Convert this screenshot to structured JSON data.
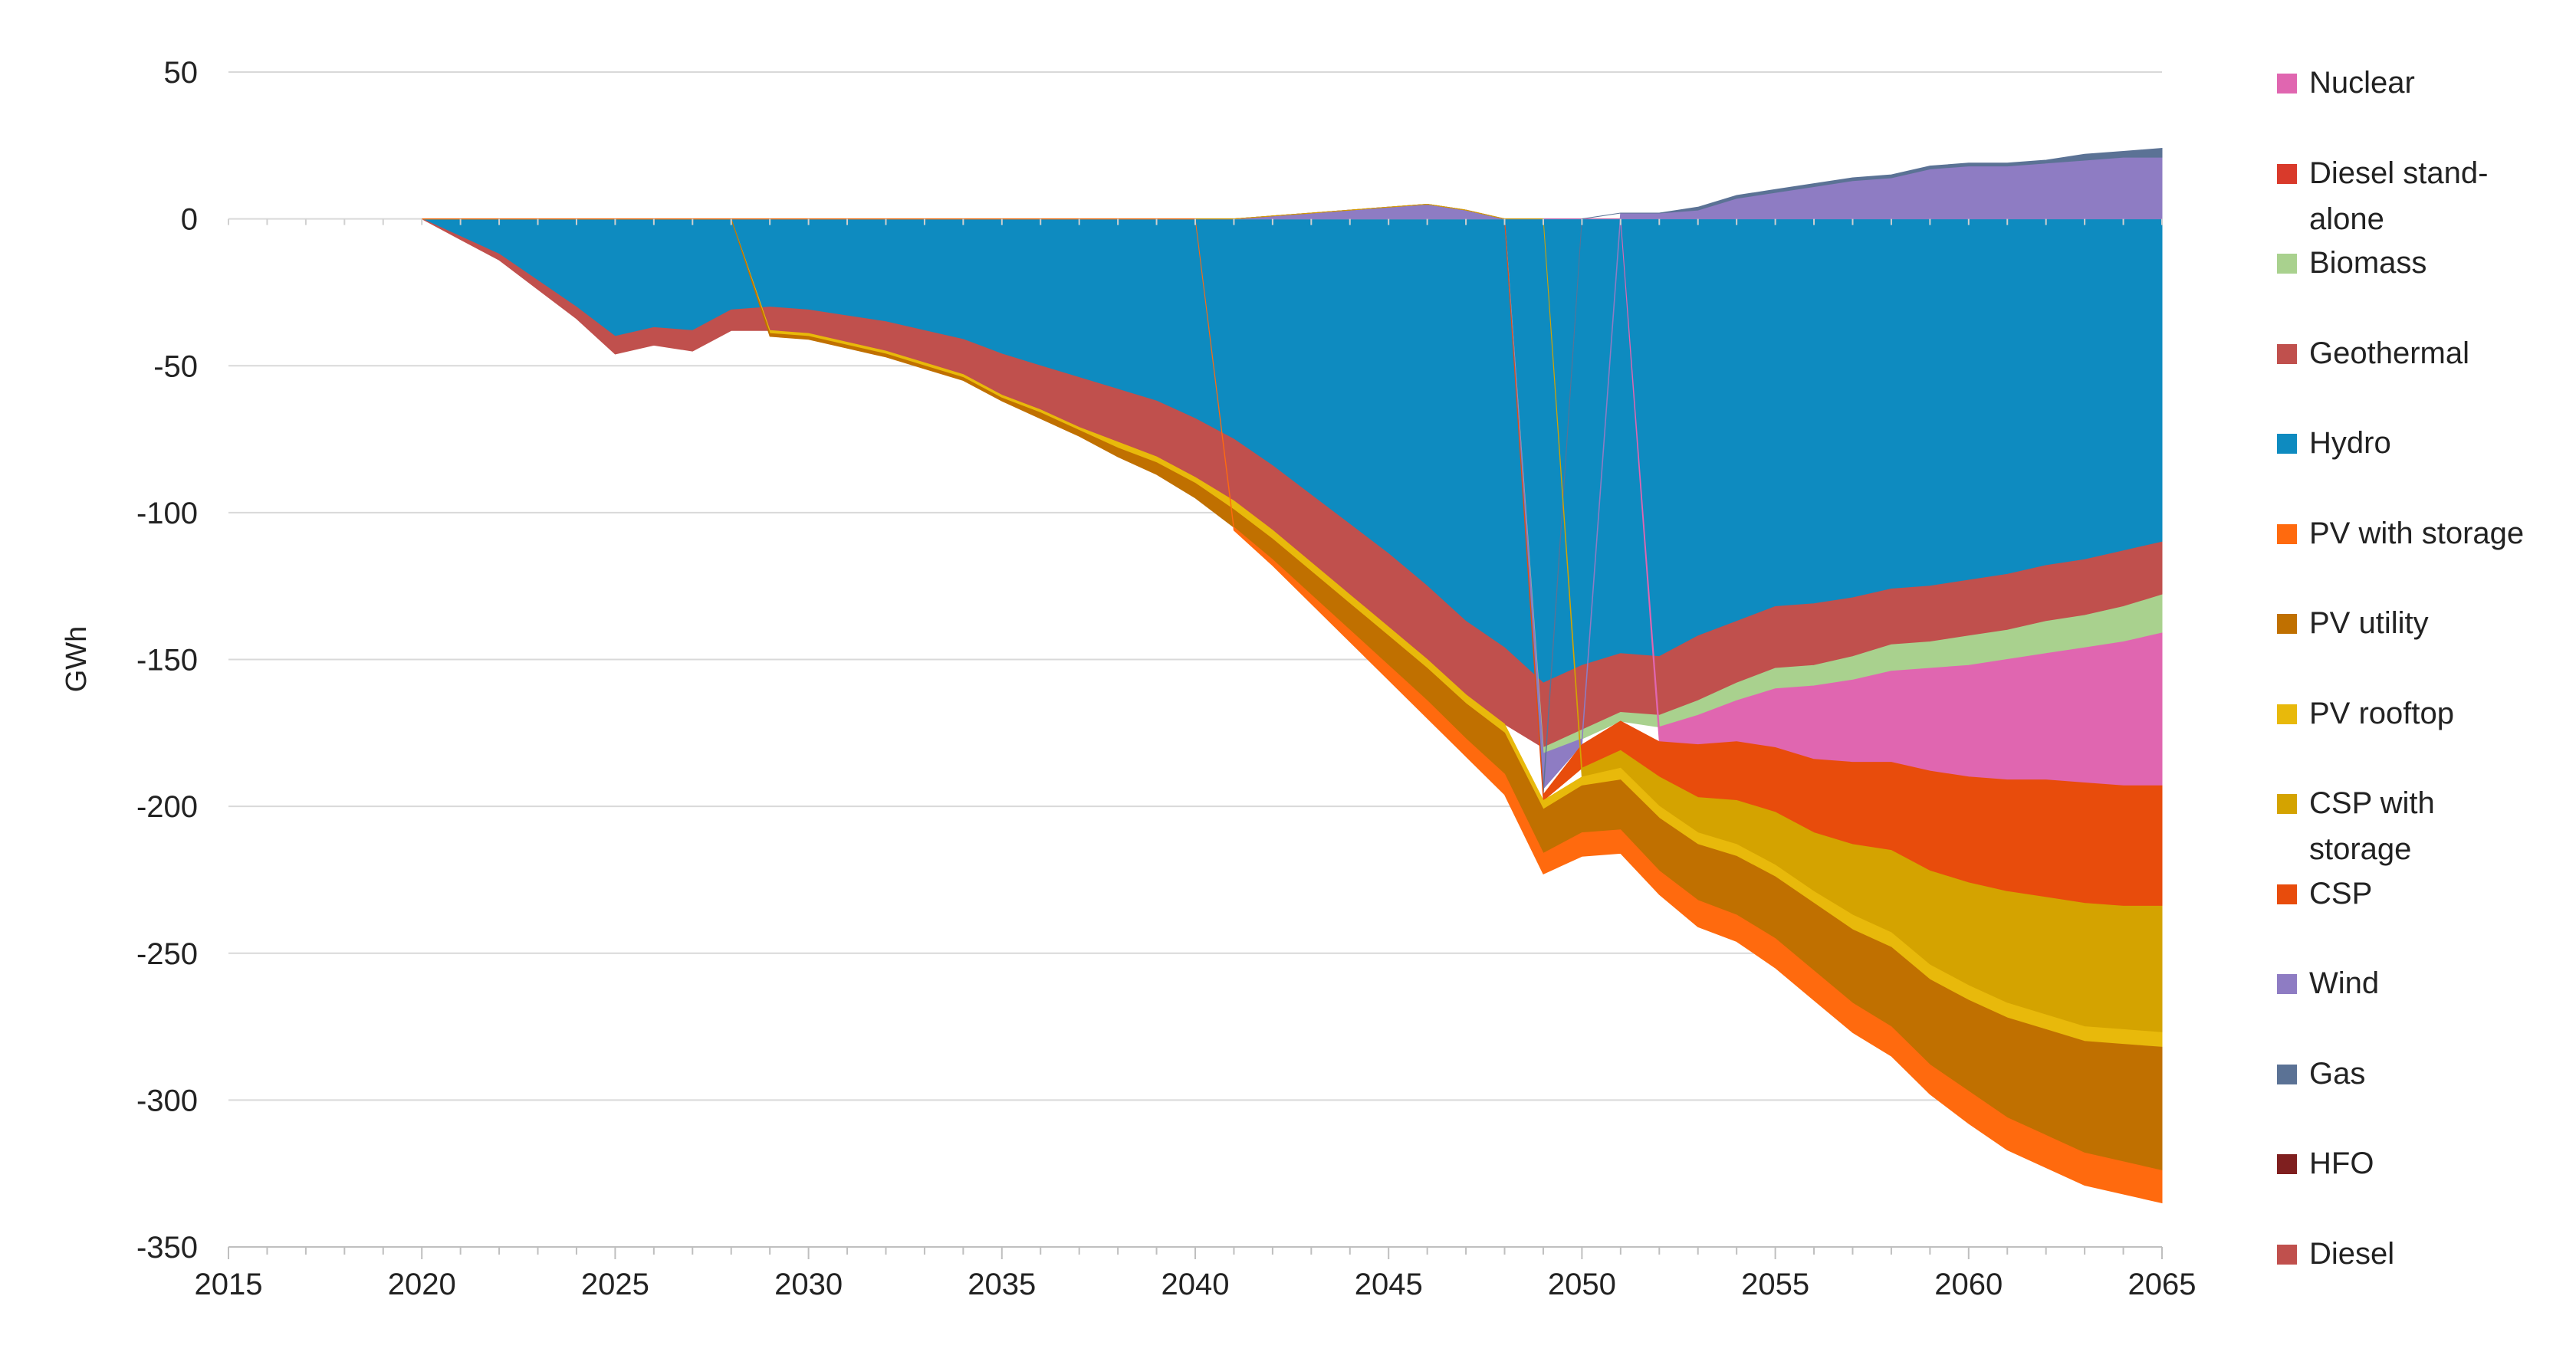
{
  "chart_data": {
    "type": "area",
    "title": "",
    "xlabel": "",
    "ylabel": "GWh",
    "xlim": [
      2015,
      2065
    ],
    "ylim": [
      -350,
      50
    ],
    "xticks": [
      2015,
      2020,
      2025,
      2030,
      2035,
      2040,
      2045,
      2050,
      2055,
      2060,
      2065
    ],
    "yticks": [
      50,
      0,
      -50,
      -100,
      -150,
      -200,
      -250,
      -300,
      -350
    ],
    "grid": true,
    "legend_position": "right",
    "stacking": "negative values stack downward from 0, positive values stack upward from 0; listed in stacking order",
    "x": [
      2020,
      2021,
      2022,
      2023,
      2024,
      2025,
      2026,
      2027,
      2028,
      2029,
      2030,
      2031,
      2032,
      2033,
      2034,
      2035,
      2036,
      2037,
      2038,
      2039,
      2040,
      2041,
      2042,
      2043,
      2044,
      2045,
      2046,
      2047,
      2048,
      2049,
      2050,
      2051,
      2052,
      2053,
      2054,
      2055,
      2056,
      2057,
      2058,
      2059,
      2060,
      2061,
      2062,
      2063,
      2064,
      2065
    ],
    "series": [
      {
        "name": "Hydro",
        "color": "#0E8BC0",
        "values": [
          0,
          -6,
          -12,
          -21,
          -30,
          -40,
          -37,
          -38,
          -31,
          -30,
          -31,
          -33,
          -35,
          -38,
          -41,
          -46,
          -50,
          -54,
          -58,
          -62,
          -68,
          -75,
          -84,
          -94,
          -104,
          -114,
          -125,
          -137,
          -146,
          -158,
          -152,
          -148,
          -149,
          -142,
          -137,
          -132,
          -131,
          -129,
          -126,
          -125,
          -123,
          -121,
          -118,
          -116,
          -113,
          -110
        ]
      },
      {
        "name": "Geothermal",
        "color": "#C0504D",
        "values": [
          0,
          -1,
          -2,
          -3,
          -4,
          -6,
          -6,
          -7,
          -7,
          -8,
          -8,
          -9,
          -10,
          -11,
          -12,
          -14,
          -15,
          -17,
          -18,
          -19,
          -20,
          -21,
          -22,
          -23,
          -24,
          -25,
          -25,
          -25,
          -26,
          -22,
          -22,
          -20,
          -20,
          -22,
          -21,
          -21,
          -21,
          -20,
          -19,
          -19,
          -19,
          -19,
          -19,
          -19,
          -19,
          -18
        ]
      },
      {
        "name": "Biomass",
        "color": "#A9D18E",
        "values": [
          0,
          0,
          0,
          0,
          0,
          0,
          0,
          0,
          0,
          0,
          0,
          0,
          0,
          0,
          0,
          0,
          0,
          0,
          0,
          0,
          0,
          0,
          0,
          0,
          0,
          0,
          0,
          0,
          0,
          -2,
          -3,
          -3,
          -4,
          -5,
          -6,
          -7,
          -7,
          -8,
          -9,
          -9,
          -10,
          -10,
          -11,
          -11,
          -12,
          -13
        ]
      },
      {
        "name": "Nuclear",
        "color": "#E066B0",
        "values": [
          0,
          0,
          0,
          0,
          0,
          0,
          0,
          0,
          0,
          0,
          0,
          0,
          0,
          0,
          0,
          0,
          0,
          0,
          0,
          0,
          0,
          0,
          0,
          0,
          0,
          0,
          0,
          0,
          0,
          0,
          0,
          0,
          -5,
          -10,
          -14,
          -20,
          -25,
          -28,
          -31,
          -35,
          -38,
          -41,
          -43,
          -46,
          -49,
          -52
        ]
      },
      {
        "name": "Wind",
        "color": "#8E7CC3",
        "values": [
          0,
          0,
          0,
          0,
          0,
          0,
          0,
          0,
          0,
          0,
          0,
          0,
          0,
          0,
          0,
          0,
          0,
          0,
          0,
          0,
          0,
          0,
          1,
          2,
          3,
          4,
          5,
          3,
          0,
          -12,
          -2,
          2,
          2,
          3,
          7,
          9,
          11,
          13,
          14,
          17,
          18,
          18,
          19,
          20,
          21,
          21
        ]
      },
      {
        "name": "Gas",
        "color": "#5B7295",
        "values": [
          0,
          0,
          0,
          0,
          0,
          0,
          0,
          0,
          0,
          0,
          0,
          0,
          0,
          0,
          0,
          0,
          0,
          0,
          0,
          0,
          0,
          0,
          0,
          0,
          0,
          0,
          0,
          0,
          0,
          -2,
          0,
          0,
          0,
          1,
          1,
          1,
          1,
          1,
          1,
          1,
          1,
          1,
          1,
          2,
          2,
          3
        ]
      },
      {
        "name": "CSP",
        "color": "#E84C0C",
        "values": [
          0,
          0,
          0,
          0,
          0,
          0,
          0,
          0,
          0,
          0,
          0,
          0,
          0,
          0,
          0,
          0,
          0,
          0,
          0,
          0,
          0,
          0,
          0,
          0,
          0,
          0,
          0,
          0,
          0,
          -2,
          -8,
          -10,
          -12,
          -18,
          -20,
          -22,
          -25,
          -28,
          -30,
          -34,
          -36,
          -38,
          -40,
          -41,
          -41,
          -41
        ]
      },
      {
        "name": "CSP with storage",
        "color": "#D4A300",
        "values": [
          0,
          0,
          0,
          0,
          0,
          0,
          0,
          0,
          0,
          0,
          0,
          0,
          0,
          0,
          0,
          0,
          0,
          0,
          0,
          0,
          0,
          0,
          0,
          0,
          0,
          0,
          0,
          0,
          0,
          0,
          -3,
          -6,
          -10,
          -12,
          -15,
          -18,
          -20,
          -24,
          -28,
          -32,
          -35,
          -38,
          -40,
          -42,
          -42,
          -43
        ]
      },
      {
        "name": "PV rooftop",
        "color": "#E8B90B",
        "values": [
          0,
          0,
          0,
          0,
          0,
          0,
          0,
          0,
          0,
          -1,
          -1,
          -1,
          -1,
          -1,
          -1,
          -1,
          -1,
          -1,
          -2,
          -2,
          -2,
          -3,
          -3,
          -3,
          -3,
          -3,
          -3,
          -3,
          -3,
          -3,
          -3,
          -4,
          -4,
          -4,
          -4,
          -4,
          -4,
          -5,
          -5,
          -5,
          -5,
          -5,
          -5,
          -5,
          -5,
          -5
        ]
      },
      {
        "name": "PV utility",
        "color": "#C07000",
        "values": [
          0,
          0,
          0,
          0,
          0,
          0,
          0,
          0,
          0,
          -1,
          -1,
          -1,
          -1,
          -1,
          -1,
          -1,
          -2,
          -2,
          -3,
          -4,
          -5,
          -6,
          -7,
          -8,
          -9,
          -10,
          -11,
          -12,
          -14,
          -15,
          -16,
          -17,
          -18,
          -19,
          -20,
          -21,
          -23,
          -25,
          -27,
          -29,
          -31,
          -34,
          -36,
          -38,
          -40,
          -42
        ]
      },
      {
        "name": "PV with storage",
        "color": "#FF6A0E",
        "values": [
          0,
          0,
          0,
          0,
          0,
          0,
          0,
          0,
          0,
          0,
          0,
          0,
          0,
          0,
          0,
          0,
          0,
          0,
          0,
          0,
          0,
          -1,
          -2,
          -3,
          -4,
          -5,
          -6,
          -6,
          -7,
          -7,
          -8,
          -8,
          -8,
          -9,
          -9,
          -10,
          -10,
          -10,
          -10,
          -10,
          -11,
          -11,
          -11,
          -11,
          -11,
          -11
        ]
      },
      {
        "name": "Diesel stand-alone",
        "color": "#D93A2B",
        "values": [
          0,
          0,
          0,
          0,
          0,
          0,
          0,
          0,
          0,
          0,
          0,
          0,
          0,
          0,
          0,
          0,
          0,
          0,
          0,
          0,
          0,
          0,
          0,
          0,
          0,
          0,
          0,
          0,
          0,
          0,
          0,
          0,
          0,
          0,
          0,
          0,
          0,
          0,
          0,
          0,
          0,
          0,
          0,
          0,
          0,
          0
        ]
      },
      {
        "name": "HFO",
        "color": "#7F1F1F",
        "values": [
          0,
          0,
          0,
          0,
          0,
          0,
          0,
          0,
          0,
          0,
          0,
          0,
          0,
          0,
          0,
          0,
          0,
          0,
          0,
          0,
          0,
          0,
          0,
          0,
          0,
          0,
          0,
          0,
          0,
          0,
          0,
          0,
          0,
          0,
          0,
          0,
          0,
          0,
          0,
          0,
          0,
          0,
          0,
          0,
          0,
          0
        ]
      },
      {
        "name": "Diesel",
        "color": "#C0504D",
        "values": [
          0,
          0,
          0,
          0,
          0,
          0,
          0,
          0,
          0,
          0,
          0,
          0,
          0,
          0,
          0,
          0,
          0,
          0,
          0,
          0,
          0,
          0,
          0,
          0,
          0,
          0,
          0,
          0,
          0,
          0,
          0,
          0,
          0,
          0,
          0,
          0,
          0,
          0,
          0,
          0,
          0,
          0,
          0,
          0,
          0,
          0
        ]
      }
    ],
    "legend_order": [
      "Nuclear",
      "Diesel stand-alone",
      "Biomass",
      "Geothermal",
      "Hydro",
      "PV with storage",
      "PV utility",
      "PV rooftop",
      "CSP with storage",
      "CSP",
      "Wind",
      "Gas",
      "HFO",
      "Diesel"
    ],
    "legend_labels": [
      {
        "name": "Nuclear",
        "lines": [
          "Nuclear"
        ]
      },
      {
        "name": "Diesel stand-alone",
        "lines": [
          "Diesel stand-",
          "alone"
        ]
      },
      {
        "name": "Biomass",
        "lines": [
          "Biomass"
        ]
      },
      {
        "name": "Geothermal",
        "lines": [
          "Geothermal"
        ]
      },
      {
        "name": "Hydro",
        "lines": [
          "Hydro"
        ]
      },
      {
        "name": "PV with storage",
        "lines": [
          "PV with storage"
        ]
      },
      {
        "name": "PV utility",
        "lines": [
          "PV utility"
        ]
      },
      {
        "name": "PV rooftop",
        "lines": [
          "PV rooftop"
        ]
      },
      {
        "name": "CSP with storage",
        "lines": [
          "CSP with",
          "storage"
        ]
      },
      {
        "name": "CSP",
        "lines": [
          "CSP"
        ]
      },
      {
        "name": "Wind",
        "lines": [
          "Wind"
        ]
      },
      {
        "name": "Gas",
        "lines": [
          "Gas"
        ]
      },
      {
        "name": "HFO",
        "lines": [
          "HFO"
        ]
      },
      {
        "name": "Diesel",
        "lines": [
          "Diesel"
        ]
      }
    ]
  }
}
